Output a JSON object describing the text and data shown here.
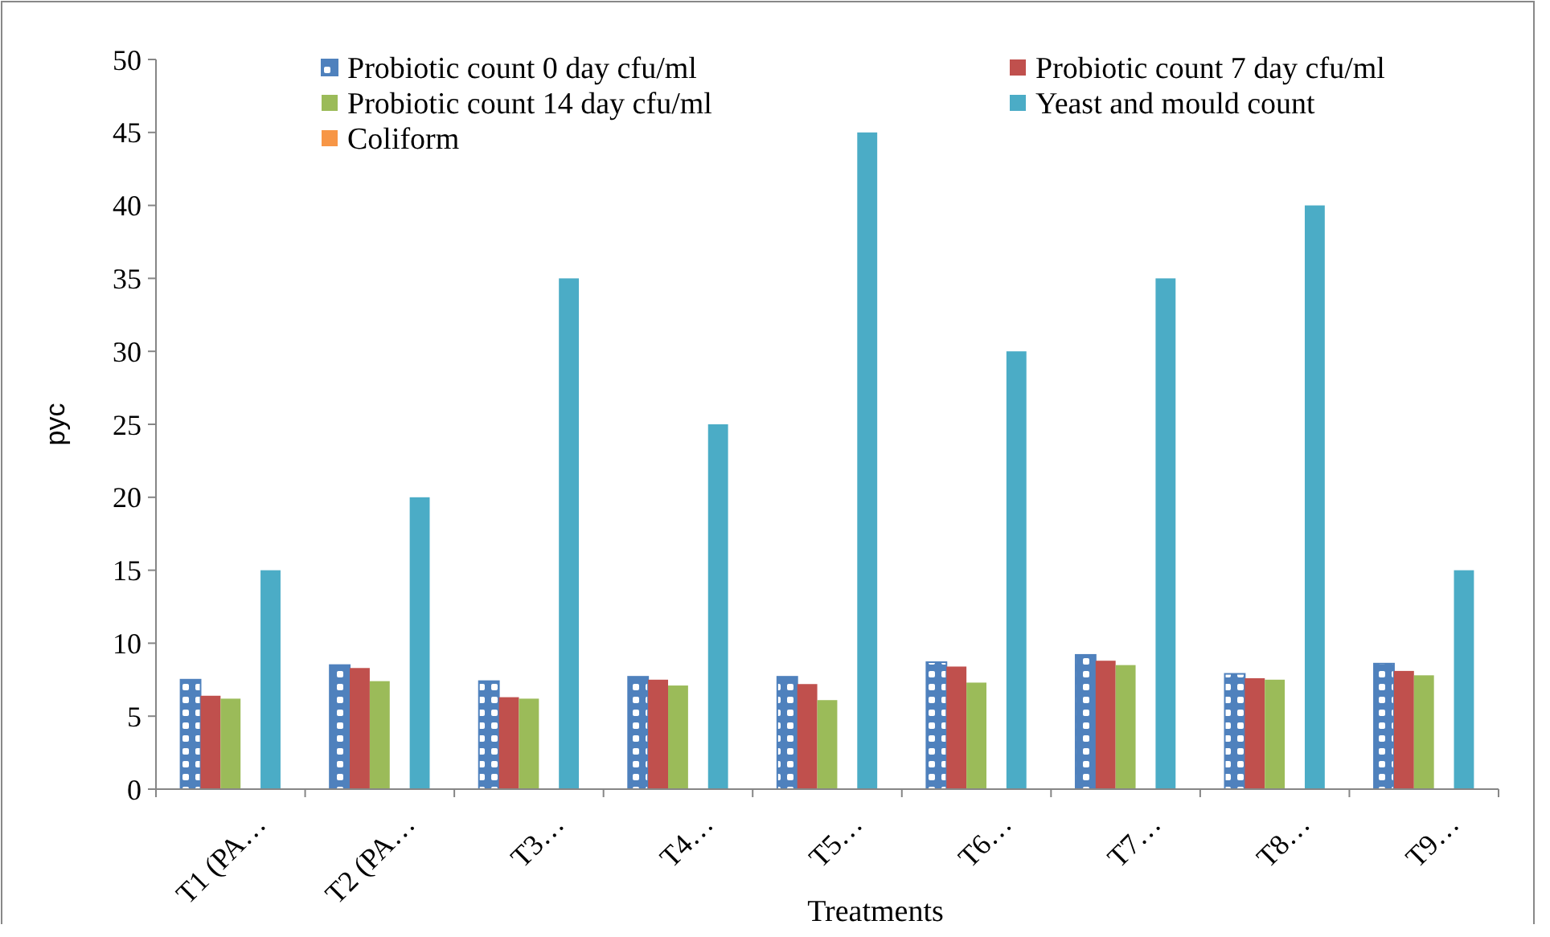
{
  "chart_data": {
    "type": "bar",
    "xlabel": "Treatments",
    "ylabel": "pyc",
    "categories": [
      "T1 (PA…",
      "T2 (PA…",
      "T3…",
      "T4…",
      "T5…",
      "T6…",
      "T7…",
      "T8…",
      "T9…"
    ],
    "series": [
      {
        "name": "Probiotic count 0 day cfu/ml",
        "color": "#4f81bd",
        "values": [
          7.5,
          8.5,
          7.4,
          7.7,
          7.7,
          8.7,
          9.2,
          7.9,
          8.6
        ]
      },
      {
        "name": "Probiotic count 7 day cfu/ml",
        "color": "#c0504d",
        "values": [
          6.4,
          8.3,
          6.3,
          7.5,
          7.2,
          8.4,
          8.8,
          7.6,
          8.1
        ]
      },
      {
        "name": "Probiotic count 14 day cfu/ml",
        "color": "#9bbb59",
        "values": [
          6.2,
          7.4,
          6.2,
          7.1,
          6.1,
          7.3,
          8.5,
          7.5,
          7.8
        ]
      },
      {
        "name": "Coliform",
        "color": "#f79646",
        "values": [
          0,
          0,
          0,
          0,
          0,
          0,
          0,
          0,
          0
        ]
      },
      {
        "name": "Yeast and mould count",
        "color": "#4bacc6",
        "values": [
          15,
          20,
          35,
          25,
          45,
          30,
          35,
          40,
          15
        ]
      }
    ],
    "ylim": [
      0,
      50
    ],
    "yticks": [
      0,
      5,
      10,
      15,
      20,
      25,
      30,
      35,
      40,
      45,
      50
    ],
    "grid": false,
    "legend": "top"
  }
}
